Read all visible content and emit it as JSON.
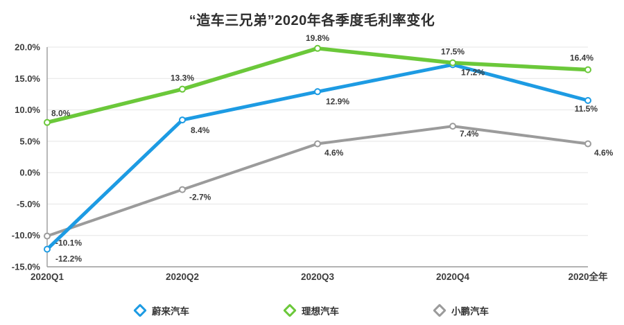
{
  "title": "“造车三兄弟”2020年各季度毛利率变化",
  "chart_data": {
    "type": "line",
    "title": "“造车三兄弟”2020年各季度毛利率变化",
    "categories": [
      "2020Q1",
      "2020Q2",
      "2020Q3",
      "2020Q4",
      "2020全年"
    ],
    "series": [
      {
        "name": "蔚来汽车",
        "color": "#1d9be3",
        "values": [
          -12.2,
          8.4,
          12.9,
          17.2,
          11.5
        ]
      },
      {
        "name": "理想汽车",
        "color": "#6bc83a",
        "values": [
          8.0,
          13.3,
          19.8,
          17.5,
          16.4
        ]
      },
      {
        "name": "小鹏汽车",
        "color": "#9b9b9b",
        "values": [
          -10.1,
          -2.7,
          4.6,
          7.4,
          4.6
        ]
      }
    ],
    "ylim": [
      -15,
      20
    ],
    "ytick_step": 5,
    "ytick_labels": [
      "20.0%",
      "15.0%",
      "10.0%",
      "5.0%",
      "0.0%",
      "-5.0%",
      "-10.0%",
      "-15.0%"
    ],
    "value_suffix": "%",
    "grid": true,
    "legend_position": "bottom",
    "colors": {
      "grid": "#e5e5e5",
      "axis": "#9a9a9a",
      "tick_text": "#3d3d3d",
      "data_label": "#3a3a3a"
    }
  }
}
